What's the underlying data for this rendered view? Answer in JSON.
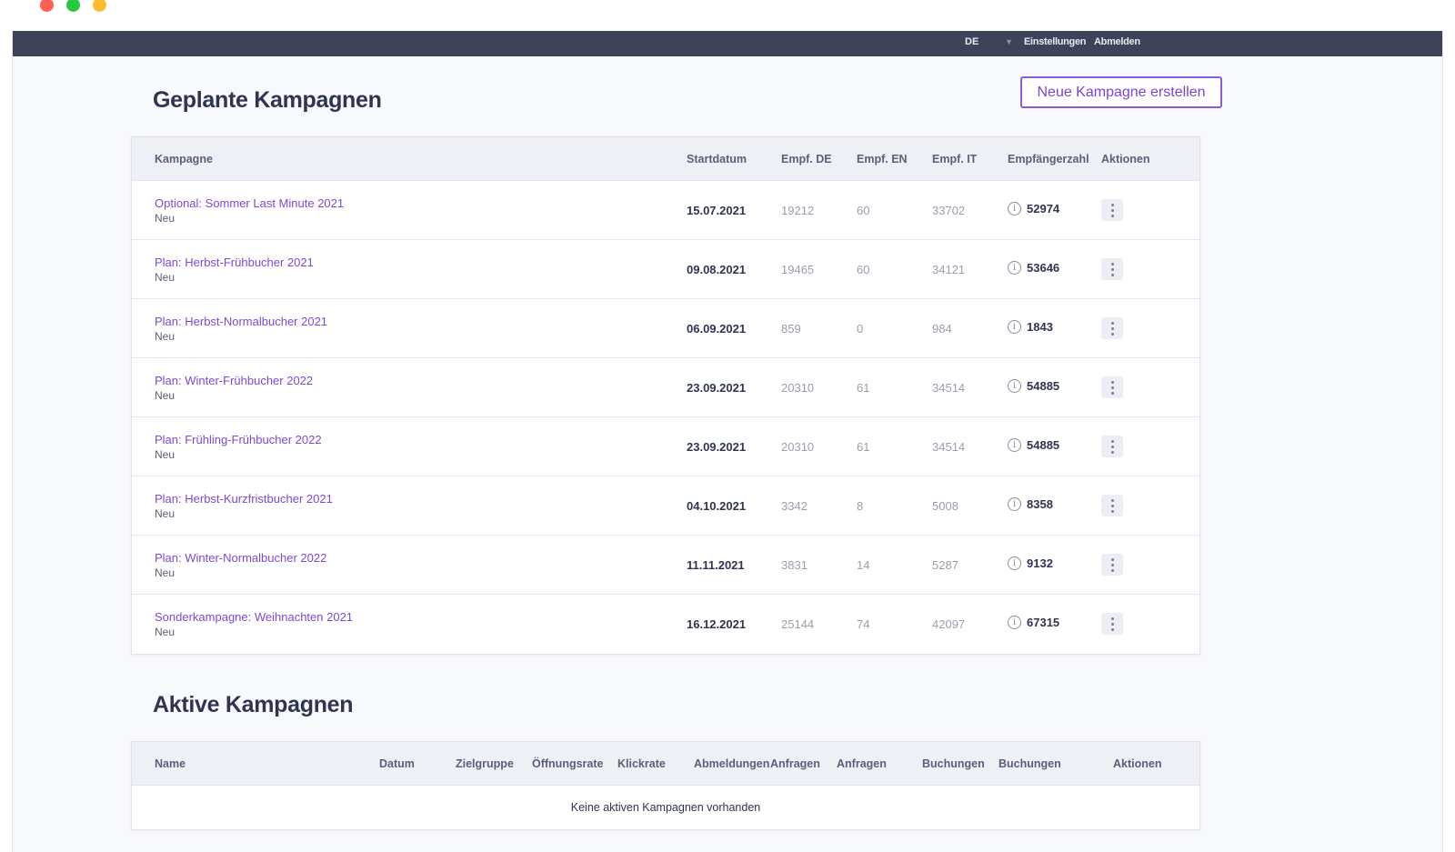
{
  "window_controls": {
    "close_color": "#fe5f57",
    "minimize_color": "#28c840",
    "zoom_color": "#febc2e"
  },
  "topbar": {
    "language": "DE",
    "settings_label": "Einstellungen",
    "logout_label": "Abmelden"
  },
  "planned": {
    "title": "Geplante Kampagnen",
    "new_button_label": "Neue Kampagne erstellen",
    "columns": {
      "campaign": "Kampagne",
      "start": "Startdatum",
      "de": "Empf. DE",
      "en": "Empf. EN",
      "it": "Empf. IT",
      "total": "Empfängerzahl",
      "actions": "Aktionen"
    },
    "rows": [
      {
        "name": "Optional: Sommer Last Minute 2021",
        "status": "Neu",
        "start": "15.07.2021",
        "de": "19212",
        "en": "60",
        "it": "33702",
        "total": "52974"
      },
      {
        "name": "Plan: Herbst-Frühbucher 2021",
        "status": "Neu",
        "start": "09.08.2021",
        "de": "19465",
        "en": "60",
        "it": "34121",
        "total": "53646"
      },
      {
        "name": "Plan: Herbst-Normalbucher 2021",
        "status": "Neu",
        "start": "06.09.2021",
        "de": "859",
        "en": "0",
        "it": "984",
        "total": "1843"
      },
      {
        "name": "Plan: Winter-Frühbucher 2022",
        "status": "Neu",
        "start": "23.09.2021",
        "de": "20310",
        "en": "61",
        "it": "34514",
        "total": "54885"
      },
      {
        "name": "Plan: Frühling-Frühbucher 2022",
        "status": "Neu",
        "start": "23.09.2021",
        "de": "20310",
        "en": "61",
        "it": "34514",
        "total": "54885"
      },
      {
        "name": "Plan: Herbst-Kurzfristbucher 2021",
        "status": "Neu",
        "start": "04.10.2021",
        "de": "3342",
        "en": "8",
        "it": "5008",
        "total": "8358"
      },
      {
        "name": "Plan: Winter-Normalbucher 2022",
        "status": "Neu",
        "start": "11.11.2021",
        "de": "3831",
        "en": "14",
        "it": "5287",
        "total": "9132"
      },
      {
        "name": "Sonderkampagne: Weihnachten 2021",
        "status": "Neu",
        "start": "16.12.2021",
        "de": "25144",
        "en": "74",
        "it": "42097",
        "total": "67315"
      }
    ]
  },
  "active": {
    "title": "Aktive Kampagnen",
    "columns": [
      "Name",
      "Datum",
      "Zielgruppe",
      "Öffnungsrate",
      "Klickrate",
      "Abmeldungen",
      "Anfragen",
      "Anfragen",
      "Buchungen",
      "Buchungen",
      "Aktionen"
    ],
    "empty_message": "Keine aktiven Kampagnen vorhanden"
  }
}
